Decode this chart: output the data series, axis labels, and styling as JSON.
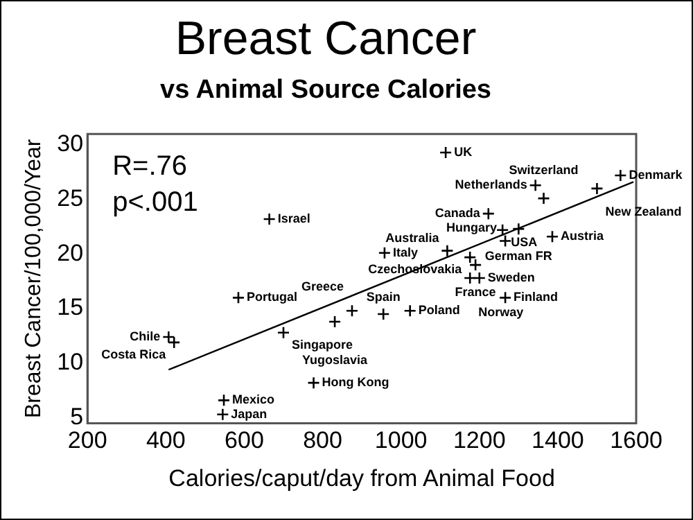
{
  "chart_data": {
    "type": "scatter",
    "title": "Breast Cancer",
    "subtitle": "vs Animal Source Calories",
    "xlabel": "Calories/caput/day from Animal Food",
    "ylabel": "Breast Cancer/100,000/Year",
    "xlim": [
      200,
      1600
    ],
    "xticks": [
      200,
      400,
      600,
      800,
      1000,
      1200,
      1400,
      1600
    ],
    "ylim": [
      4.5,
      31
    ],
    "yticks": [
      5,
      10,
      15,
      20,
      25,
      30
    ],
    "grid": false,
    "legend": false,
    "marker": "cross",
    "series": [
      {
        "color": "#000000",
        "x": [
          407,
          421,
          664,
          958,
          585,
          700,
          831,
          875,
          955,
          1023,
          777,
          548,
          545,
          1114,
          1343,
          1364,
          1560,
          1500,
          1223,
          1259,
          1300,
          1266,
          1386,
          1118,
          1176,
          1190,
          1176,
          1200,
          1266
        ],
        "values": [
          12.4,
          11.9,
          23.2,
          20.1,
          16.0,
          12.8,
          13.8,
          14.8,
          14.5,
          14.8,
          8.2,
          6.6,
          5.3,
          29.3,
          26.3,
          25.1,
          27.2,
          26.0,
          23.7,
          22.2,
          22.3,
          21.2,
          21.6,
          20.3,
          19.7,
          19.0,
          17.8,
          17.8,
          16.0
        ]
      },
      {
        "type": "line",
        "color": "#000000",
        "marker": "none",
        "x": [
          407,
          1593
        ],
        "values": [
          9.4,
          26.6
        ]
      }
    ],
    "annotations": [
      "R=.76",
      "p<.001",
      {
        "text": "Chile",
        "x": 407,
        "y": 12.4
      },
      {
        "text": "Costa Rica",
        "x": 421,
        "y": 11.9
      },
      {
        "text": "Israel",
        "x": 664,
        "y": 23.2
      },
      {
        "text": "Italy",
        "x": 958,
        "y": 20.1
      },
      {
        "text": "Portugal",
        "x": 585,
        "y": 16.0
      },
      {
        "text": "Singapore",
        "x": 700,
        "y": 12.8
      },
      {
        "text": "Yugoslavia",
        "x": 831,
        "y": 13.8
      },
      {
        "text": "Greece",
        "x": 875,
        "y": 14.8
      },
      {
        "text": "Spain",
        "x": 955,
        "y": 14.5
      },
      {
        "text": "Poland",
        "x": 1023,
        "y": 14.8
      },
      {
        "text": "Hong Kong",
        "x": 777,
        "y": 8.2
      },
      {
        "text": "Mexico",
        "x": 548,
        "y": 6.6
      },
      {
        "text": "Japan",
        "x": 545,
        "y": 5.3
      },
      {
        "text": "UK",
        "x": 1114,
        "y": 29.3
      },
      {
        "text": "Netherlands",
        "x": 1343,
        "y": 26.3
      },
      {
        "text": "Switzerland",
        "x": 1364,
        "y": 25.1
      },
      {
        "text": "Denmark",
        "x": 1560,
        "y": 27.2
      },
      {
        "text": "New Zealand",
        "x": 1500,
        "y": 26.0
      },
      {
        "text": "Canada",
        "x": 1223,
        "y": 23.7
      },
      {
        "text": "USA",
        "x": 1259,
        "y": 22.2
      },
      {
        "text": "German FR",
        "x": 1300,
        "y": 22.3
      },
      {
        "text": "Hungary",
        "x": 1266,
        "y": 21.2
      },
      {
        "text": "Austria",
        "x": 1386,
        "y": 21.6
      },
      {
        "text": "Australia",
        "x": 1118,
        "y": 20.3
      },
      {
        "text": "Czechoslovakia",
        "x": 1176,
        "y": 19.7
      },
      {
        "text": "France",
        "x": 1190,
        "y": 19.0
      },
      {
        "text": "Norway",
        "x": 1176,
        "y": 17.8
      },
      {
        "text": "Sweden",
        "x": 1200,
        "y": 17.8
      },
      {
        "text": "Finland",
        "x": 1266,
        "y": 16.0
      }
    ]
  }
}
